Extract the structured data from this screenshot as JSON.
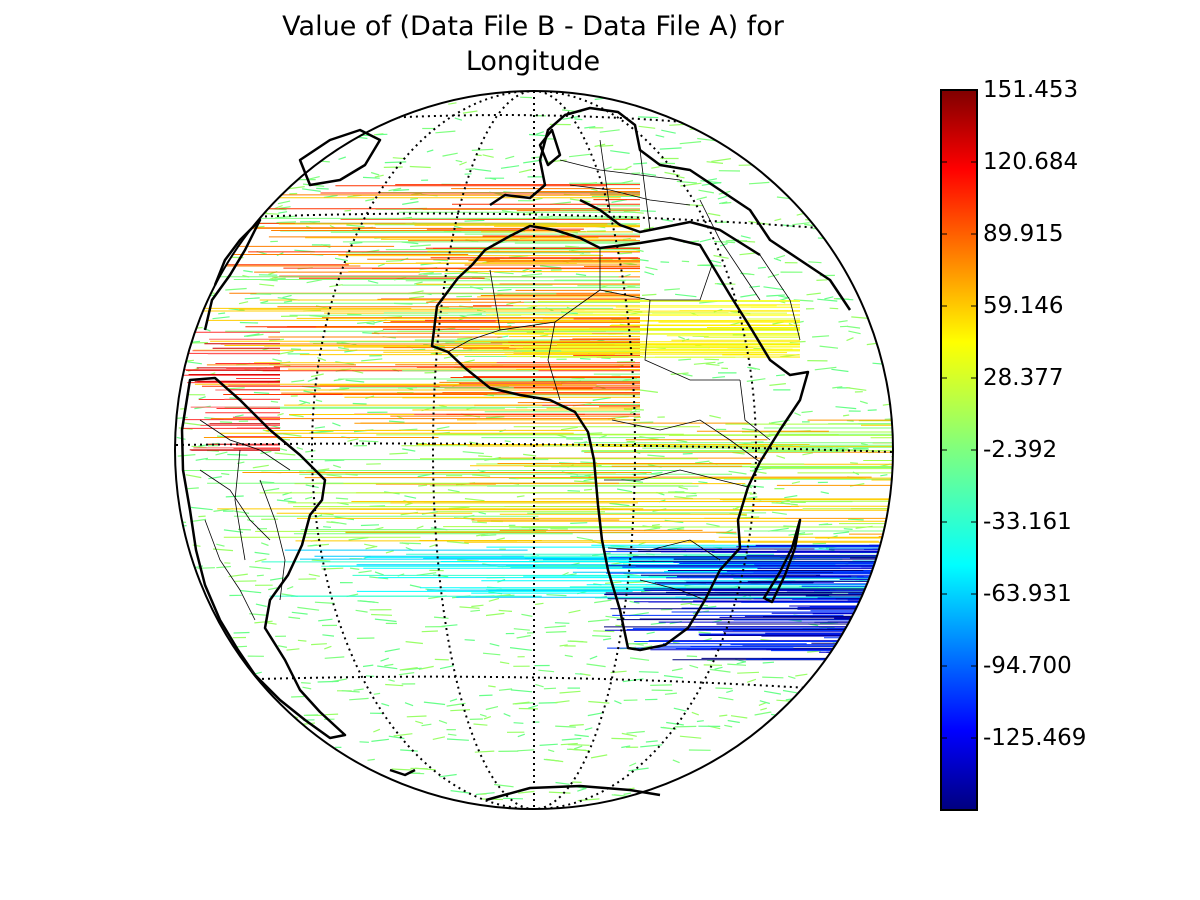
{
  "title": {
    "line1": "Value of (Data File B - Data File A) for",
    "line2": "Longitude"
  },
  "colorbar": {
    "ticks": [
      "151.453",
      "120.684",
      "89.915",
      "59.146",
      "28.377",
      "-2.392",
      "-33.161",
      "-63.931",
      "-94.700",
      "-125.469"
    ],
    "tick_values": [
      151.453,
      120.684,
      89.915,
      59.146,
      28.377,
      -2.392,
      -33.161,
      -63.931,
      -94.7,
      -125.469
    ],
    "vmin": -156.238,
    "vmax": 151.453,
    "colormap": "jet",
    "placement": "right"
  },
  "map": {
    "projection": "orthographic",
    "coastlines": true,
    "country_borders": true,
    "graticule": "dotted",
    "background": "#ffffff"
  },
  "colors": {
    "jet_stops": [
      "#00007f",
      "#0000ff",
      "#007fff",
      "#00ffff",
      "#7fff7f",
      "#ffff00",
      "#ff7f00",
      "#ff0000",
      "#7f0000"
    ]
  }
}
